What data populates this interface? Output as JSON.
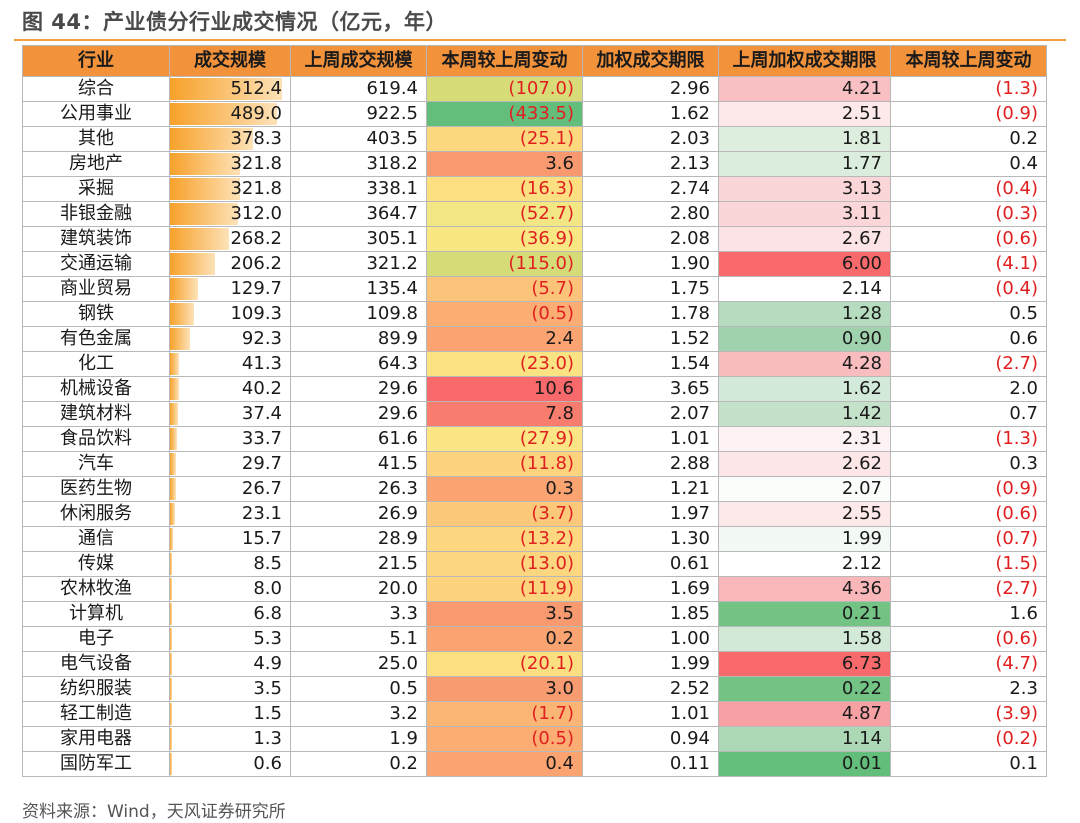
{
  "title": "图 44：产业债分行业成交情况（亿元，年）",
  "source": "资料来源：Wind，天风证券研究所",
  "columns": [
    "行业",
    "成交规模",
    "上周成交规模",
    "本周较上周变动",
    "加权成交期限",
    "上周加权成交期限",
    "本周较上周变动"
  ],
  "colors": {
    "header_bg": "#f2923b",
    "rule": "#f0a040",
    "negative_text": "#e02020",
    "bar_fill": "#f7a12a"
  },
  "rows": [
    {
      "ind": "综合",
      "vol": "512.4",
      "prev": "619.4",
      "chg": "(107.0)",
      "term": "2.96",
      "pterm": "4.21",
      "tchg": "(1.3)",
      "vol_num": 512.4,
      "chg_bg": "#d8dc78",
      "pterm_bg": "#f9c0c4"
    },
    {
      "ind": "公用事业",
      "vol": "489.0",
      "prev": "922.5",
      "chg": "(433.5)",
      "term": "1.62",
      "pterm": "2.51",
      "tchg": "(0.9)",
      "vol_num": 489.0,
      "chg_bg": "#63be7b",
      "pterm_bg": "#fde8ea"
    },
    {
      "ind": "其他",
      "vol": "378.3",
      "prev": "403.5",
      "chg": "(25.1)",
      "term": "2.03",
      "pterm": "1.81",
      "tchg": "0.2",
      "vol_num": 378.3,
      "chg_bg": "#fbd87e",
      "pterm_bg": "#ddeede"
    },
    {
      "ind": "房地产",
      "vol": "321.8",
      "prev": "318.2",
      "chg": "3.6",
      "term": "2.13",
      "pterm": "1.77",
      "tchg": "0.4",
      "vol_num": 321.8,
      "chg_bg": "#f8996f",
      "pterm_bg": "#dbeddd"
    },
    {
      "ind": "采掘",
      "vol": "321.8",
      "prev": "338.1",
      "chg": "(16.3)",
      "term": "2.74",
      "pterm": "3.13",
      "tchg": "(0.4)",
      "vol_num": 321.8,
      "chg_bg": "#fcdf81",
      "pterm_bg": "#fbd6d9"
    },
    {
      "ind": "非银金融",
      "vol": "312.0",
      "prev": "364.7",
      "chg": "(52.7)",
      "term": "2.80",
      "pterm": "3.11",
      "tchg": "(0.3)",
      "vol_num": 312.0,
      "chg_bg": "#f3e684",
      "pterm_bg": "#fbd6d9"
    },
    {
      "ind": "建筑装饰",
      "vol": "268.2",
      "prev": "305.1",
      "chg": "(36.9)",
      "term": "2.08",
      "pterm": "2.67",
      "tchg": "(0.6)",
      "vol_num": 268.2,
      "chg_bg": "#f8e783",
      "pterm_bg": "#fce4e6"
    },
    {
      "ind": "交通运输",
      "vol": "206.2",
      "prev": "321.2",
      "chg": "(115.0)",
      "term": "1.90",
      "pterm": "6.00",
      "tchg": "(4.1)",
      "vol_num": 206.2,
      "chg_bg": "#d5db77",
      "pterm_bg": "#f8696b"
    },
    {
      "ind": "商业贸易",
      "vol": "129.7",
      "prev": "135.4",
      "chg": "(5.7)",
      "term": "1.75",
      "pterm": "2.14",
      "tchg": "(0.4)",
      "vol_num": 129.7,
      "chg_bg": "#fcc47a",
      "pterm_bg": "#ffffff"
    },
    {
      "ind": "钢铁",
      "vol": "109.3",
      "prev": "109.8",
      "chg": "(0.5)",
      "term": "1.78",
      "pterm": "1.28",
      "tchg": "0.5",
      "vol_num": 109.3,
      "chg_bg": "#fbad73",
      "pterm_bg": "#b6dcbf"
    },
    {
      "ind": "有色金属",
      "vol": "92.3",
      "prev": "89.9",
      "chg": "2.4",
      "term": "1.52",
      "pterm": "0.90",
      "tchg": "0.6",
      "vol_num": 92.3,
      "chg_bg": "#fba471",
      "pterm_bg": "#a0d3ad"
    },
    {
      "ind": "化工",
      "vol": "41.3",
      "prev": "64.3",
      "chg": "(23.0)",
      "term": "1.54",
      "pterm": "4.28",
      "tchg": "(2.7)",
      "vol_num": 41.3,
      "chg_bg": "#fbe283",
      "pterm_bg": "#f9bcbf"
    },
    {
      "ind": "机械设备",
      "vol": "40.2",
      "prev": "29.6",
      "chg": "10.6",
      "term": "3.65",
      "pterm": "1.62",
      "tchg": "2.0",
      "vol_num": 40.2,
      "chg_bg": "#f8696b",
      "pterm_bg": "#d3eadb"
    },
    {
      "ind": "建筑材料",
      "vol": "37.4",
      "prev": "29.6",
      "chg": "7.8",
      "term": "2.07",
      "pterm": "1.42",
      "tchg": "0.7",
      "vol_num": 37.4,
      "chg_bg": "#f97d6e",
      "pterm_bg": "#c3e2c9"
    },
    {
      "ind": "食品饮料",
      "vol": "33.7",
      "prev": "61.6",
      "chg": "(27.9)",
      "term": "1.01",
      "pterm": "2.31",
      "tchg": "(1.3)",
      "vol_num": 33.7,
      "chg_bg": "#fbe584",
      "pterm_bg": "#fef3f4"
    },
    {
      "ind": "汽车",
      "vol": "29.7",
      "prev": "41.5",
      "chg": "(11.8)",
      "term": "2.88",
      "pterm": "2.62",
      "tchg": "0.3",
      "vol_num": 29.7,
      "chg_bg": "#fdd37e",
      "pterm_bg": "#fce6e8"
    },
    {
      "ind": "医药生物",
      "vol": "26.7",
      "prev": "26.3",
      "chg": "0.3",
      "term": "1.21",
      "pterm": "2.07",
      "tchg": "(0.9)",
      "vol_num": 26.7,
      "chg_bg": "#fba472",
      "pterm_bg": "#fbfdfb"
    },
    {
      "ind": "休闲服务",
      "vol": "23.1",
      "prev": "26.9",
      "chg": "(3.7)",
      "term": "1.97",
      "pterm": "2.55",
      "tchg": "(0.6)",
      "vol_num": 23.1,
      "chg_bg": "#fcc97b",
      "pterm_bg": "#fde8ea"
    },
    {
      "ind": "通信",
      "vol": "15.7",
      "prev": "28.9",
      "chg": "(13.2)",
      "term": "1.30",
      "pterm": "1.99",
      "tchg": "(0.7)",
      "vol_num": 15.7,
      "chg_bg": "#fdd77f",
      "pterm_bg": "#f3f9f4"
    },
    {
      "ind": "传媒",
      "vol": "8.5",
      "prev": "21.5",
      "chg": "(13.0)",
      "term": "0.61",
      "pterm": "2.12",
      "tchg": "(1.5)",
      "vol_num": 8.5,
      "chg_bg": "#fdd77f",
      "pterm_bg": "#ffffff"
    },
    {
      "ind": "农林牧渔",
      "vol": "8.0",
      "prev": "20.0",
      "chg": "(11.9)",
      "term": "1.69",
      "pterm": "4.36",
      "tchg": "(2.7)",
      "vol_num": 8.0,
      "chg_bg": "#fdd37e",
      "pterm_bg": "#f9b7ba"
    },
    {
      "ind": "计算机",
      "vol": "6.8",
      "prev": "3.3",
      "chg": "3.5",
      "term": "1.85",
      "pterm": "0.21",
      "tchg": "1.6",
      "vol_num": 6.8,
      "chg_bg": "#f8996f",
      "pterm_bg": "#72c384"
    },
    {
      "ind": "电子",
      "vol": "5.3",
      "prev": "5.1",
      "chg": "0.2",
      "term": "1.00",
      "pterm": "1.58",
      "tchg": "(0.6)",
      "vol_num": 5.3,
      "chg_bg": "#fba472",
      "pterm_bg": "#d1e9d6"
    },
    {
      "ind": "电气设备",
      "vol": "4.9",
      "prev": "25.0",
      "chg": "(20.1)",
      "term": "1.99",
      "pterm": "6.73",
      "tchg": "(4.7)",
      "vol_num": 4.9,
      "chg_bg": "#fcdf81",
      "pterm_bg": "#f8696b"
    },
    {
      "ind": "纺织服装",
      "vol": "3.5",
      "prev": "0.5",
      "chg": "3.0",
      "term": "2.52",
      "pterm": "0.22",
      "tchg": "2.3",
      "vol_num": 3.5,
      "chg_bg": "#f99b70",
      "pterm_bg": "#72c384"
    },
    {
      "ind": "轻工制造",
      "vol": "1.5",
      "prev": "3.2",
      "chg": "(1.7)",
      "term": "1.01",
      "pterm": "4.87",
      "tchg": "(3.9)",
      "vol_num": 1.5,
      "chg_bg": "#fbb575",
      "pterm_bg": "#f7a1a5"
    },
    {
      "ind": "家用电器",
      "vol": "1.3",
      "prev": "1.9",
      "chg": "(0.5)",
      "term": "0.94",
      "pterm": "1.14",
      "tchg": "(0.2)",
      "vol_num": 1.3,
      "chg_bg": "#fbad73",
      "pterm_bg": "#acd8b5"
    },
    {
      "ind": "国防军工",
      "vol": "0.6",
      "prev": "0.2",
      "chg": "0.4",
      "term": "0.11",
      "pterm": "0.01",
      "tchg": "0.1",
      "vol_num": 0.6,
      "chg_bg": "#fba472",
      "pterm_bg": "#63be7b"
    }
  ]
}
